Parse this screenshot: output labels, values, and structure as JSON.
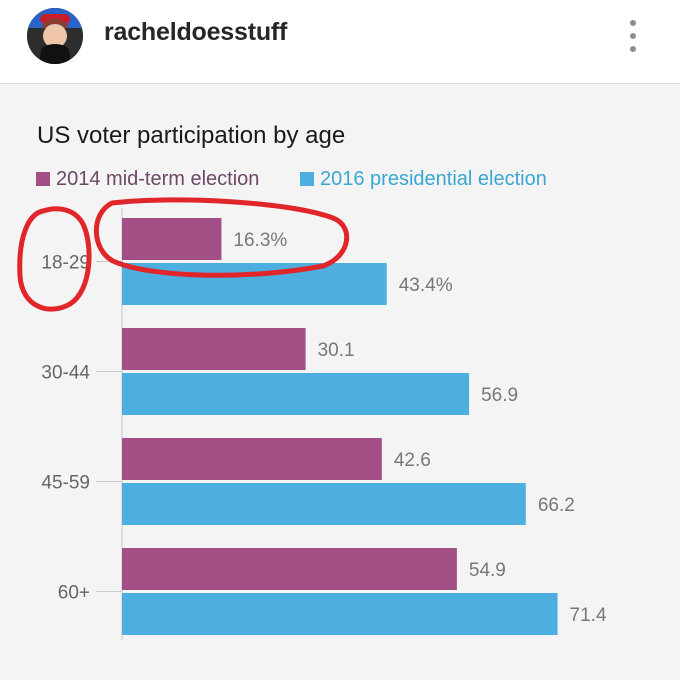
{
  "post": {
    "username": "racheldoesstuff",
    "avatar_icon": "profile-avatar-icon",
    "more_icon": "more-options-icon"
  },
  "colors": {
    "series_2014": "#a24f86",
    "series_2016": "#4daee0",
    "annotation": "#e0262b"
  },
  "chart_data": {
    "type": "bar",
    "orientation": "horizontal",
    "title": "US voter participation by age",
    "categories": [
      "18-29",
      "30-44",
      "45-59",
      "60+"
    ],
    "series": [
      {
        "name": "2014 mid-term election",
        "values": [
          16.3,
          30.1,
          42.6,
          54.9
        ]
      },
      {
        "name": "2016 presidential election",
        "values": [
          43.4,
          56.9,
          66.2,
          71.4
        ]
      }
    ],
    "value_labels": [
      [
        "16.3%",
        "30.1",
        "42.6",
        "54.9"
      ],
      [
        "43.4%",
        "56.9",
        "66.2",
        "71.4"
      ]
    ],
    "xlim": [
      0,
      100
    ],
    "xlabel": "",
    "ylabel": "",
    "legend_position": "top-left",
    "annotations": [
      "red circle around 18-29 label",
      "red circle around 16.3% 2014 bar"
    ]
  }
}
